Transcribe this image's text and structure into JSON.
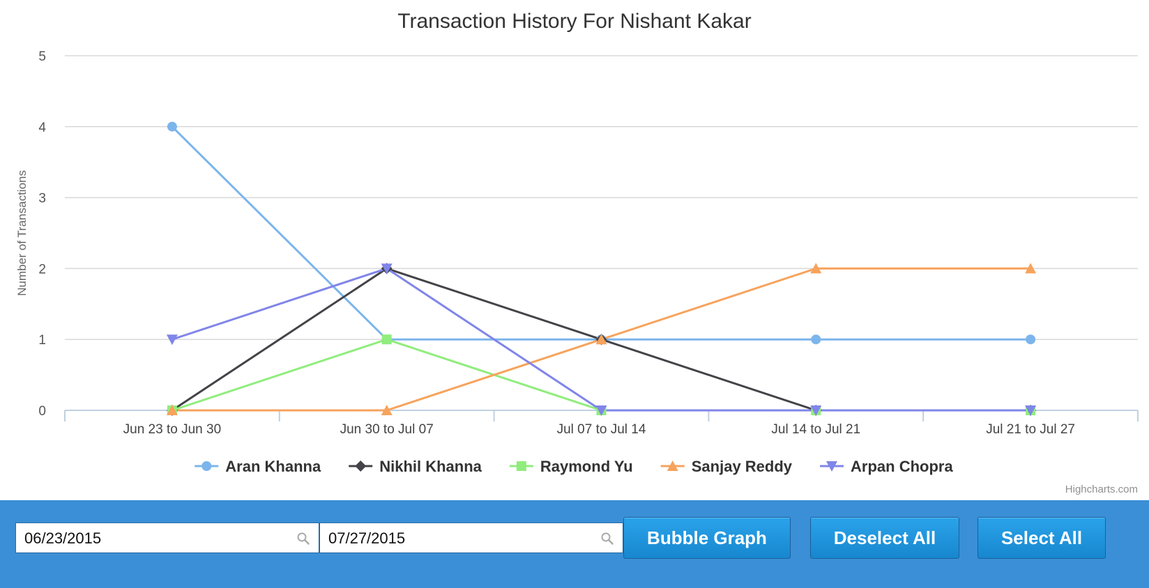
{
  "chart_data": {
    "type": "line",
    "title": "Transaction History For Nishant Kakar",
    "ylabel": "Number of Transactions",
    "xlabel": "",
    "categories": [
      "Jun 23 to Jun 30",
      "Jun 30 to Jul 07",
      "Jul 07 to Jul 14",
      "Jul 14 to Jul 21",
      "Jul 21 to Jul 27"
    ],
    "ylim": [
      0,
      5
    ],
    "yticks": [
      0,
      1,
      2,
      3,
      4,
      5
    ],
    "grid": true,
    "legend_position": "bottom",
    "series": [
      {
        "name": "Aran Khanna",
        "color": "#7cb5ec",
        "marker": "circle",
        "values": [
          4,
          1,
          1,
          1,
          1
        ]
      },
      {
        "name": "Nikhil Khanna",
        "color": "#434348",
        "marker": "diamond",
        "values": [
          0,
          2,
          1,
          0,
          0
        ]
      },
      {
        "name": "Raymond Yu",
        "color": "#90ed7d",
        "marker": "square",
        "values": [
          0,
          1,
          0,
          0,
          0
        ]
      },
      {
        "name": "Sanjay Reddy",
        "color": "#f7a35c",
        "marker": "triangle",
        "values": [
          0,
          0,
          1,
          2,
          2
        ]
      },
      {
        "name": "Arpan Chopra",
        "color": "#8085e9",
        "marker": "triangle-down",
        "values": [
          1,
          2,
          0,
          0,
          0
        ]
      }
    ]
  },
  "credit": "Highcharts.com",
  "controls": {
    "start_date": "06/23/2015",
    "end_date": "07/27/2015",
    "search_icon": "search-icon",
    "bubble_graph_label": "Bubble Graph",
    "deselect_all_label": "Deselect All",
    "select_all_label": "Select All",
    "toolbar_color": "#3a8fd6"
  }
}
